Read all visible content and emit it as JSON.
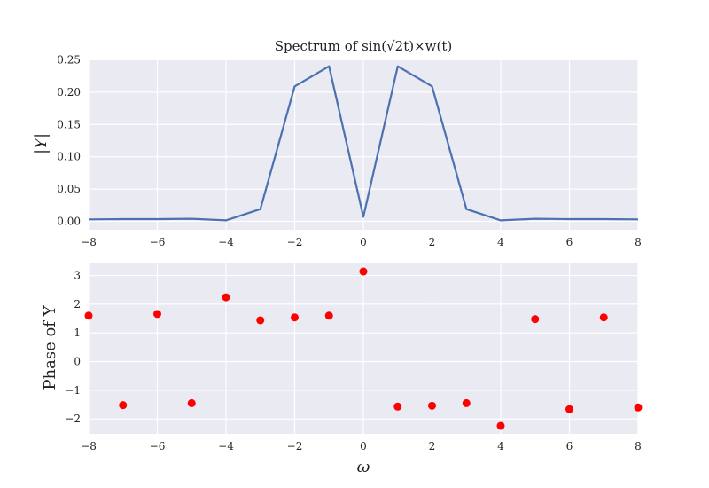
{
  "chart_data": [
    {
      "type": "line",
      "title": "Spectrum of sin(√2t)×w(t)",
      "xlabel": "",
      "ylabel": "|Y|",
      "xlim": [
        -8,
        8
      ],
      "ylim": [
        -0.013,
        0.252
      ],
      "xticks": [
        -8,
        -6,
        -4,
        -2,
        0,
        2,
        4,
        6,
        8
      ],
      "xtick_labels": [
        "−8",
        "−6",
        "−4",
        "−2",
        "0",
        "2",
        "4",
        "6",
        "8"
      ],
      "yticks": [
        0.0,
        0.05,
        0.1,
        0.15,
        0.2,
        0.25
      ],
      "ytick_labels": [
        "0.00",
        "0.05",
        "0.10",
        "0.15",
        "0.20",
        "0.25"
      ],
      "grid": true,
      "series": [
        {
          "color": "#4c72b0",
          "x": [
            -8,
            -7,
            -6,
            -5,
            -4,
            -3,
            -2,
            -1,
            0,
            1,
            2,
            3,
            4,
            5,
            6,
            7,
            8
          ],
          "y": [
            0.003,
            0.0035,
            0.0035,
            0.004,
            0.0015,
            0.019,
            0.209,
            0.24,
            0.007,
            0.24,
            0.209,
            0.019,
            0.0015,
            0.004,
            0.0035,
            0.0035,
            0.003
          ]
        }
      ]
    },
    {
      "type": "scatter",
      "title": "",
      "xlabel": "ω",
      "ylabel": "Phase of Y",
      "xlim": [
        -8,
        8
      ],
      "ylim": [
        -2.52,
        3.45
      ],
      "xticks": [
        -8,
        -6,
        -4,
        -2,
        0,
        2,
        4,
        6,
        8
      ],
      "xtick_labels": [
        "−8",
        "−6",
        "−4",
        "−2",
        "0",
        "2",
        "4",
        "6",
        "8"
      ],
      "yticks": [
        -2,
        -1,
        0,
        1,
        2,
        3
      ],
      "ytick_labels": [
        "−2",
        "−1",
        "0",
        "1",
        "2",
        "3"
      ],
      "grid": true,
      "series": [
        {
          "color": "#ff0000",
          "x": [
            -8,
            -7,
            -6,
            -5,
            -4,
            -3,
            -2,
            -1,
            0,
            1,
            2,
            3,
            4,
            5,
            6,
            7,
            8
          ],
          "y": [
            1.6,
            -1.52,
            1.66,
            -1.45,
            2.24,
            1.44,
            1.54,
            1.6,
            3.14,
            -1.57,
            -1.54,
            -1.45,
            -2.24,
            1.48,
            -1.66,
            1.54,
            -1.6
          ]
        }
      ]
    }
  ]
}
